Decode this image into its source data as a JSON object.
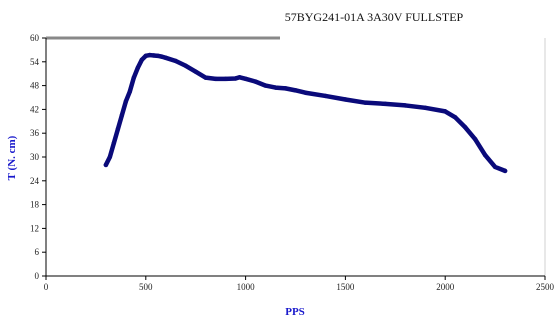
{
  "chart_data": {
    "type": "line",
    "title": "57BYG241-01A 3A30V FULLSTEP",
    "xlabel": "PPS",
    "ylabel": "T (N. cm)",
    "xlim": [
      0,
      2500
    ],
    "ylim": [
      0,
      60
    ],
    "x_ticks": [
      "0",
      "500",
      "1000",
      "1500",
      "2000",
      "2500"
    ],
    "y_ticks": [
      "0",
      "6",
      "12",
      "18",
      "24",
      "30",
      "36",
      "42",
      "48",
      "54",
      "60"
    ],
    "grid": false,
    "legend": "none",
    "series_color": "#0a0a7a",
    "axis_label_color": "#1a1acc",
    "x": [
      300,
      320,
      340,
      360,
      380,
      400,
      420,
      440,
      460,
      480,
      500,
      520,
      540,
      560,
      580,
      600,
      650,
      700,
      750,
      800,
      850,
      900,
      950,
      970,
      1000,
      1050,
      1100,
      1150,
      1200,
      1250,
      1300,
      1400,
      1500,
      1600,
      1700,
      1800,
      1900,
      2000,
      2050,
      2100,
      2150,
      2200,
      2250,
      2300
    ],
    "series": [
      {
        "values": [
          28,
          30,
          33.5,
          37,
          40.5,
          44,
          46.5,
          50,
          52.5,
          54.5,
          55.5,
          55.7,
          55.6,
          55.5,
          55.3,
          55,
          54.2,
          53,
          51.5,
          50,
          49.7,
          49.7,
          49.8,
          50.1,
          49.7,
          49,
          48,
          47.5,
          47.3,
          46.8,
          46.2,
          45.4,
          44.5,
          43.7,
          43.4,
          43,
          42.4,
          41.5,
          40,
          37.5,
          34.5,
          30.5,
          27.5,
          26.5
        ]
      }
    ]
  }
}
